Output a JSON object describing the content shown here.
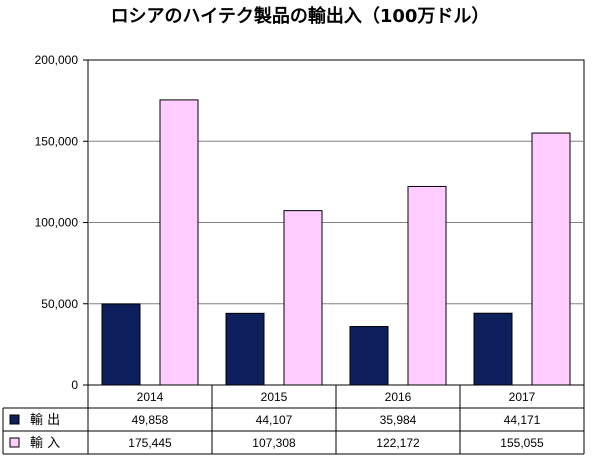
{
  "chart_data": {
    "type": "bar",
    "title": "ロシアのハイテク製品の輸出入（100万ドル）",
    "categories": [
      "2014",
      "2015",
      "2016",
      "2017"
    ],
    "series": [
      {
        "name": "輸 出",
        "values": [
          49858,
          44107,
          35984,
          44171
        ],
        "value_labels": [
          "49,858",
          "44,107",
          "35,984",
          "44,171"
        ],
        "color": "#0d1f5c"
      },
      {
        "name": "輸 入",
        "values": [
          175445,
          107308,
          122172,
          155055
        ],
        "value_labels": [
          "175,445",
          "107,308",
          "122,172",
          "155,055"
        ],
        "color": "#ffccff"
      }
    ],
    "ylim": [
      0,
      200000
    ],
    "yticks": [
      0,
      50000,
      100000,
      150000,
      200000
    ],
    "ytick_labels": [
      "0",
      "50,000",
      "100,000",
      "150,000",
      "200,000"
    ],
    "grid": true,
    "legend": "data-table-left"
  }
}
